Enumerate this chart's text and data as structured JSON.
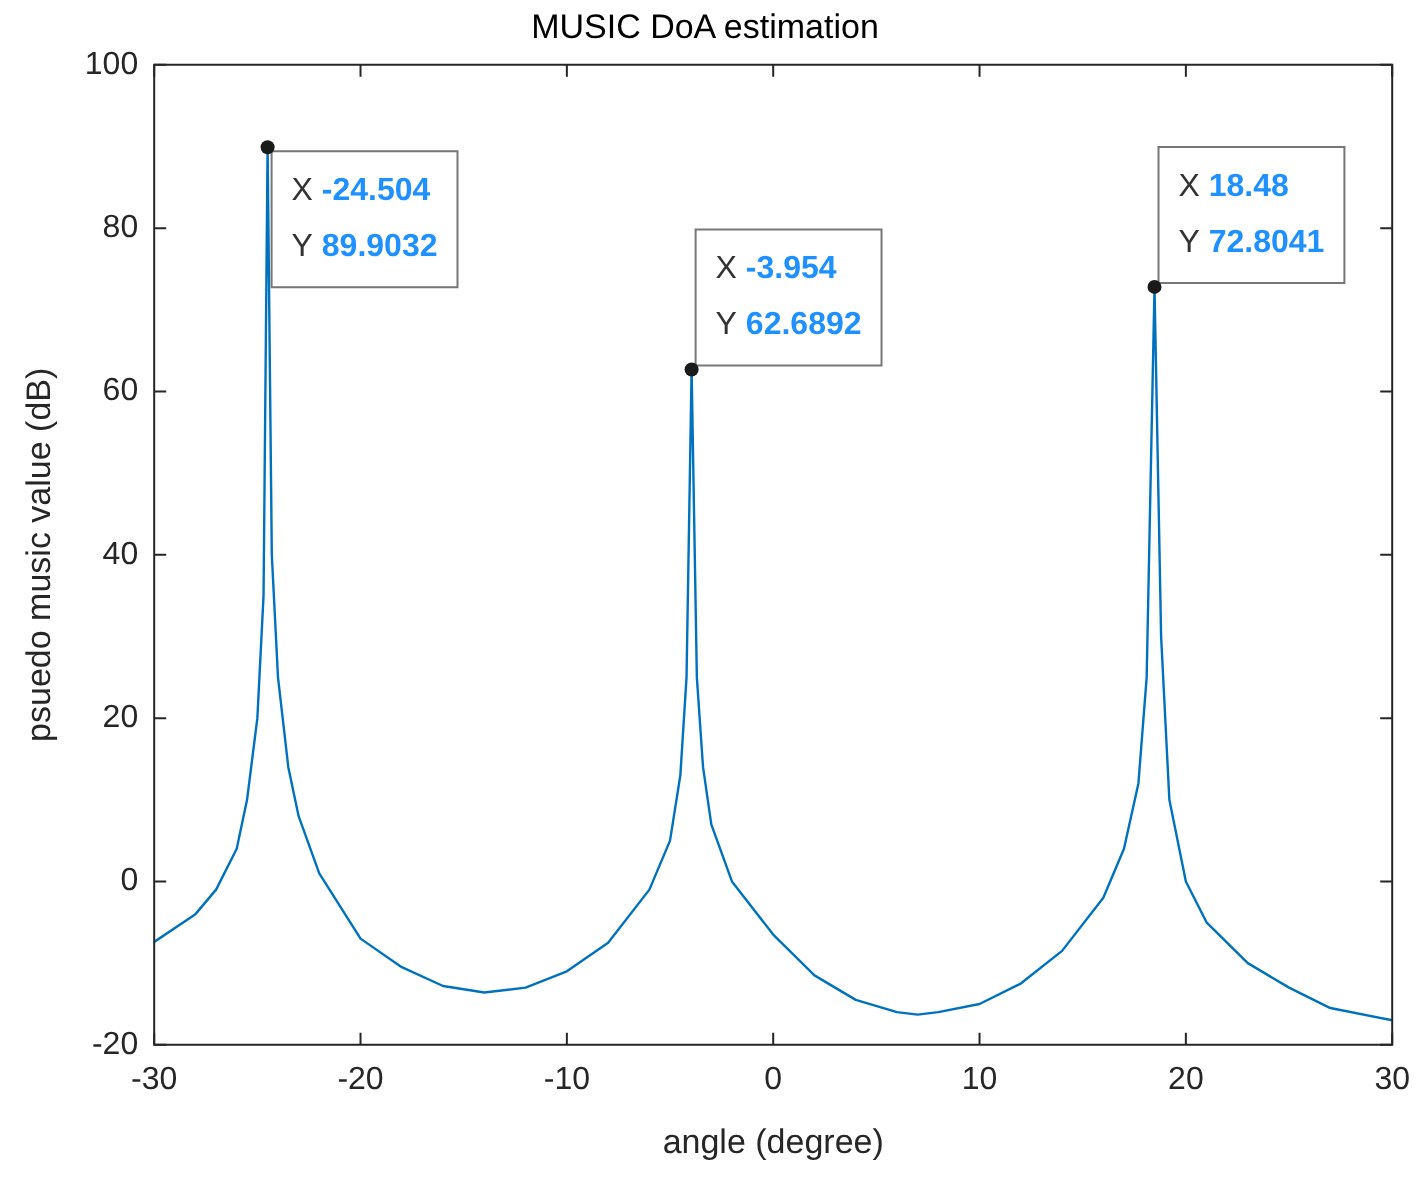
{
  "chart_data": {
    "type": "line",
    "title": "MUSIC DoA estimation",
    "xlabel": "angle (degree)",
    "ylabel": "psuedo music value (dB)",
    "xlim": [
      -30,
      30
    ],
    "xticks": [
      -30,
      -20,
      -10,
      0,
      10,
      20,
      30
    ],
    "ylim": [
      -20,
      100
    ],
    "yticks": [
      -20,
      0,
      20,
      40,
      60,
      80,
      100
    ],
    "grid": false,
    "legend": false,
    "series": [
      {
        "color": "#0072bd",
        "x": [
          -30,
          -28,
          -27,
          -26,
          -25.5,
          -25,
          -24.7,
          -24.504,
          -24.3,
          -24,
          -23.5,
          -23,
          -22,
          -20,
          -18,
          -16,
          -14,
          -12,
          -10,
          -8,
          -6,
          -5,
          -4.5,
          -4.2,
          -3.954,
          -3.7,
          -3.4,
          -3,
          -2,
          0,
          2,
          4,
          6,
          7,
          8,
          10,
          12,
          14,
          16,
          17,
          17.7,
          18.1,
          18.48,
          18.8,
          19.2,
          20,
          21,
          23,
          25,
          27,
          30
        ],
        "values": [
          -7.4,
          -4,
          -1,
          4,
          10,
          20,
          35,
          89.9032,
          40,
          25,
          14,
          8,
          1,
          -7,
          -10.5,
          -12.8,
          -13.6,
          -13,
          -11,
          -7.5,
          -1,
          5,
          13,
          25,
          62.6892,
          25,
          14,
          7,
          0,
          -6.5,
          -11.5,
          -14.5,
          -16,
          -16.3,
          -16,
          -15,
          -12.5,
          -8.5,
          -2,
          4,
          12,
          25,
          72.8041,
          30,
          10,
          0,
          -5,
          -10,
          -13,
          -15.5,
          -17
        ]
      }
    ],
    "annotations": [
      {
        "text": "X -24.504\nY 89.9032",
        "x": -24.504,
        "y": 89.9032
      },
      {
        "text": "X -3.954\nY 62.6892",
        "x": -3.954,
        "y": 62.6892
      },
      {
        "text": "X 18.48\nY 72.8041",
        "x": 18.48,
        "y": 72.8041
      }
    ]
  }
}
